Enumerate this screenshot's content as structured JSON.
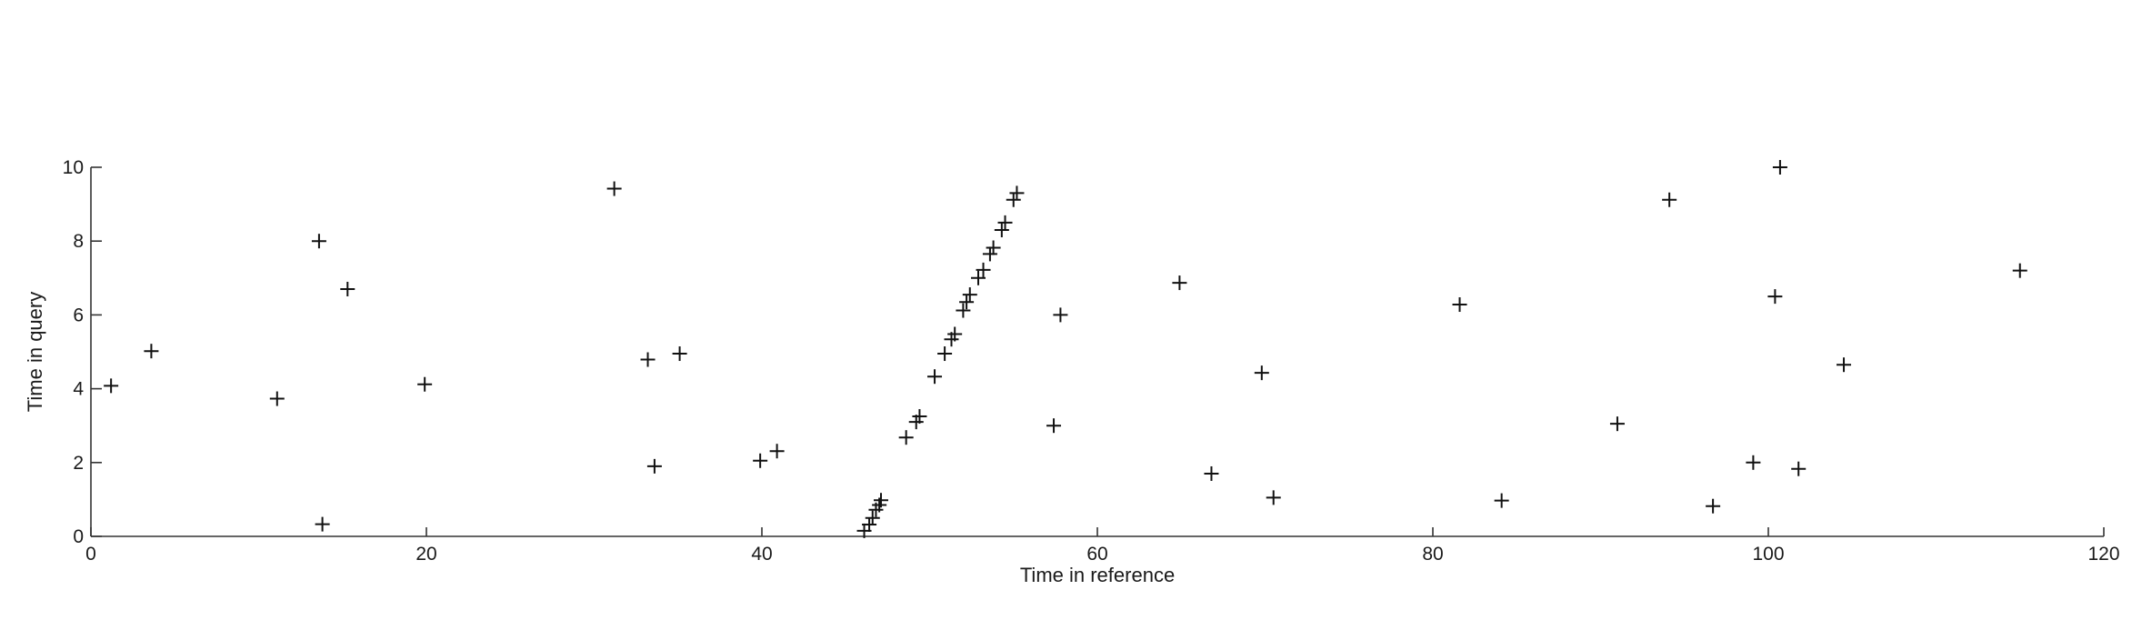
{
  "chart_data": {
    "type": "scatter",
    "title": "",
    "xlabel": "Time in reference",
    "ylabel": "Time in query",
    "xlim": [
      0,
      120
    ],
    "ylim": [
      0,
      10
    ],
    "x_ticks": [
      0,
      20,
      40,
      60,
      80,
      100,
      120
    ],
    "y_ticks": [
      0,
      2,
      4,
      6,
      8,
      10
    ],
    "x_tick_labels": [
      "0",
      "20",
      "40",
      "60",
      "80",
      "100",
      "120"
    ],
    "y_tick_labels": [
      "0",
      "2",
      "4",
      "6",
      "8",
      "10"
    ],
    "grid": false,
    "marker": "+",
    "marker_color": "#111111",
    "points": [
      [
        1.2,
        4.08
      ],
      [
        3.6,
        5.02
      ],
      [
        11.1,
        3.73
      ],
      [
        13.6,
        8.0
      ],
      [
        13.8,
        0.33
      ],
      [
        15.3,
        6.7
      ],
      [
        19.9,
        4.12
      ],
      [
        31.2,
        9.42
      ],
      [
        33.2,
        4.79
      ],
      [
        33.6,
        1.9
      ],
      [
        35.1,
        4.95
      ],
      [
        39.9,
        2.05
      ],
      [
        40.9,
        2.31
      ],
      [
        46.1,
        0.15
      ],
      [
        46.4,
        0.32
      ],
      [
        46.6,
        0.5
      ],
      [
        46.8,
        0.72
      ],
      [
        47.0,
        0.85
      ],
      [
        47.1,
        0.98
      ],
      [
        48.6,
        2.68
      ],
      [
        49.2,
        3.1
      ],
      [
        49.4,
        3.25
      ],
      [
        50.3,
        4.33
      ],
      [
        50.9,
        4.95
      ],
      [
        51.3,
        5.34
      ],
      [
        51.5,
        5.48
      ],
      [
        52.0,
        6.12
      ],
      [
        52.2,
        6.35
      ],
      [
        52.4,
        6.55
      ],
      [
        52.9,
        7.0
      ],
      [
        53.2,
        7.22
      ],
      [
        53.6,
        7.65
      ],
      [
        53.8,
        7.82
      ],
      [
        54.3,
        8.3
      ],
      [
        54.5,
        8.5
      ],
      [
        55.0,
        9.12
      ],
      [
        55.2,
        9.3
      ],
      [
        57.4,
        3.0
      ],
      [
        57.8,
        6.0
      ],
      [
        64.9,
        6.87
      ],
      [
        66.8,
        1.7
      ],
      [
        69.8,
        4.43
      ],
      [
        70.5,
        1.05
      ],
      [
        81.6,
        6.28
      ],
      [
        84.1,
        0.97
      ],
      [
        91.0,
        3.05
      ],
      [
        94.1,
        9.12
      ],
      [
        96.7,
        0.82
      ],
      [
        99.1,
        2.0
      ],
      [
        100.4,
        6.5
      ],
      [
        100.7,
        10.0
      ],
      [
        101.8,
        1.83
      ],
      [
        104.5,
        4.65
      ],
      [
        115.0,
        7.2
      ]
    ]
  }
}
